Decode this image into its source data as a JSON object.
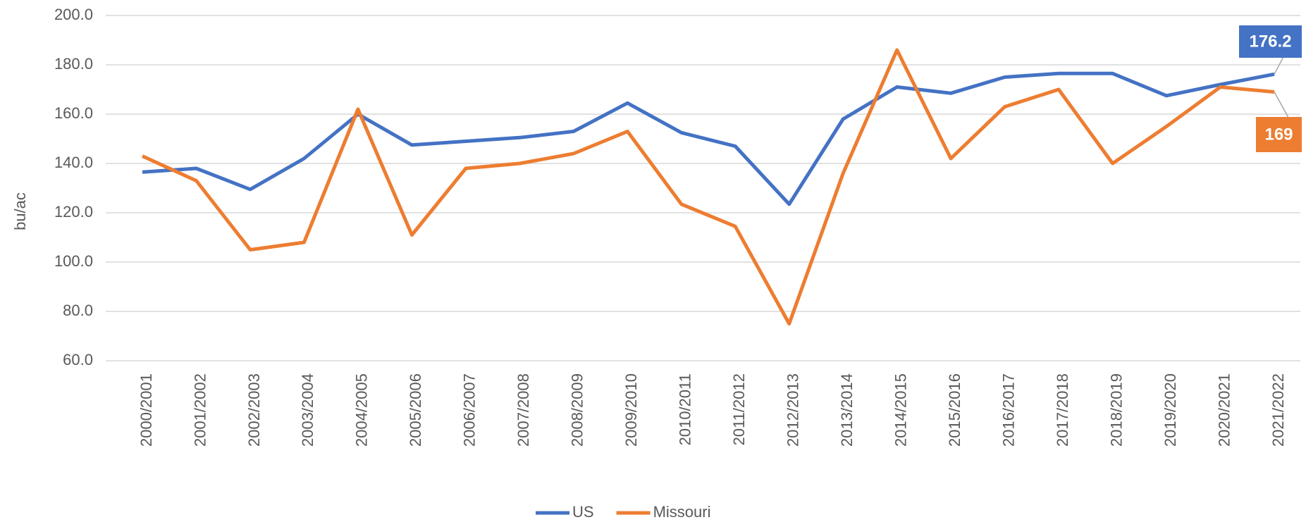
{
  "chart_data": {
    "type": "line",
    "y_label": "bu/ac",
    "categories": [
      "2000/2001",
      "2001/2002",
      "2002/2003",
      "2003/2004",
      "2004/2005",
      "2005/2006",
      "2006/2007",
      "2007/2008",
      "2008/2009",
      "2009/2010",
      "2010/2011",
      "2011/2012",
      "2012/2013",
      "2013/2014",
      "2014/2015",
      "2015/2016",
      "2016/2017",
      "2017/2018",
      "2018/2019",
      "2019/2020",
      "2020/2021",
      "2021/2022"
    ],
    "series": [
      {
        "name": "US",
        "color": "#4472c4",
        "values": [
          136.5,
          138,
          129.5,
          142,
          160,
          147.5,
          149,
          150.5,
          153,
          164.5,
          152.5,
          147,
          123.5,
          158,
          171,
          168.5,
          175,
          176.5,
          176.5,
          167.5,
          172,
          176.2
        ],
        "value_labels": [
          null,
          null,
          null,
          null,
          null,
          null,
          null,
          null,
          null,
          null,
          null,
          null,
          null,
          null,
          null,
          null,
          null,
          null,
          null,
          null,
          null,
          "176.2"
        ]
      },
      {
        "name": "Missouri",
        "color": "#ed7d31",
        "values": [
          143,
          133,
          105,
          108,
          162,
          111,
          138,
          140,
          144,
          153,
          123.5,
          114.5,
          75,
          136,
          186,
          142,
          163,
          170,
          140,
          155,
          171,
          169
        ],
        "value_labels": [
          null,
          null,
          null,
          null,
          null,
          null,
          null,
          null,
          null,
          null,
          null,
          null,
          null,
          null,
          null,
          null,
          null,
          null,
          null,
          null,
          null,
          "169"
        ]
      }
    ],
    "ylim": [
      60,
      200
    ],
    "yticks": [
      {
        "value": 60,
        "label": "60.0"
      },
      {
        "value": 80,
        "label": "80.0"
      },
      {
        "value": 100,
        "label": "100.0"
      },
      {
        "value": 120,
        "label": "120.0"
      },
      {
        "value": 140,
        "label": "140.0"
      },
      {
        "value": 160,
        "label": "160.0"
      },
      {
        "value": 180,
        "label": "180.0"
      },
      {
        "value": 200,
        "label": "200.0"
      }
    ],
    "grid": true,
    "legend": "bottom"
  }
}
